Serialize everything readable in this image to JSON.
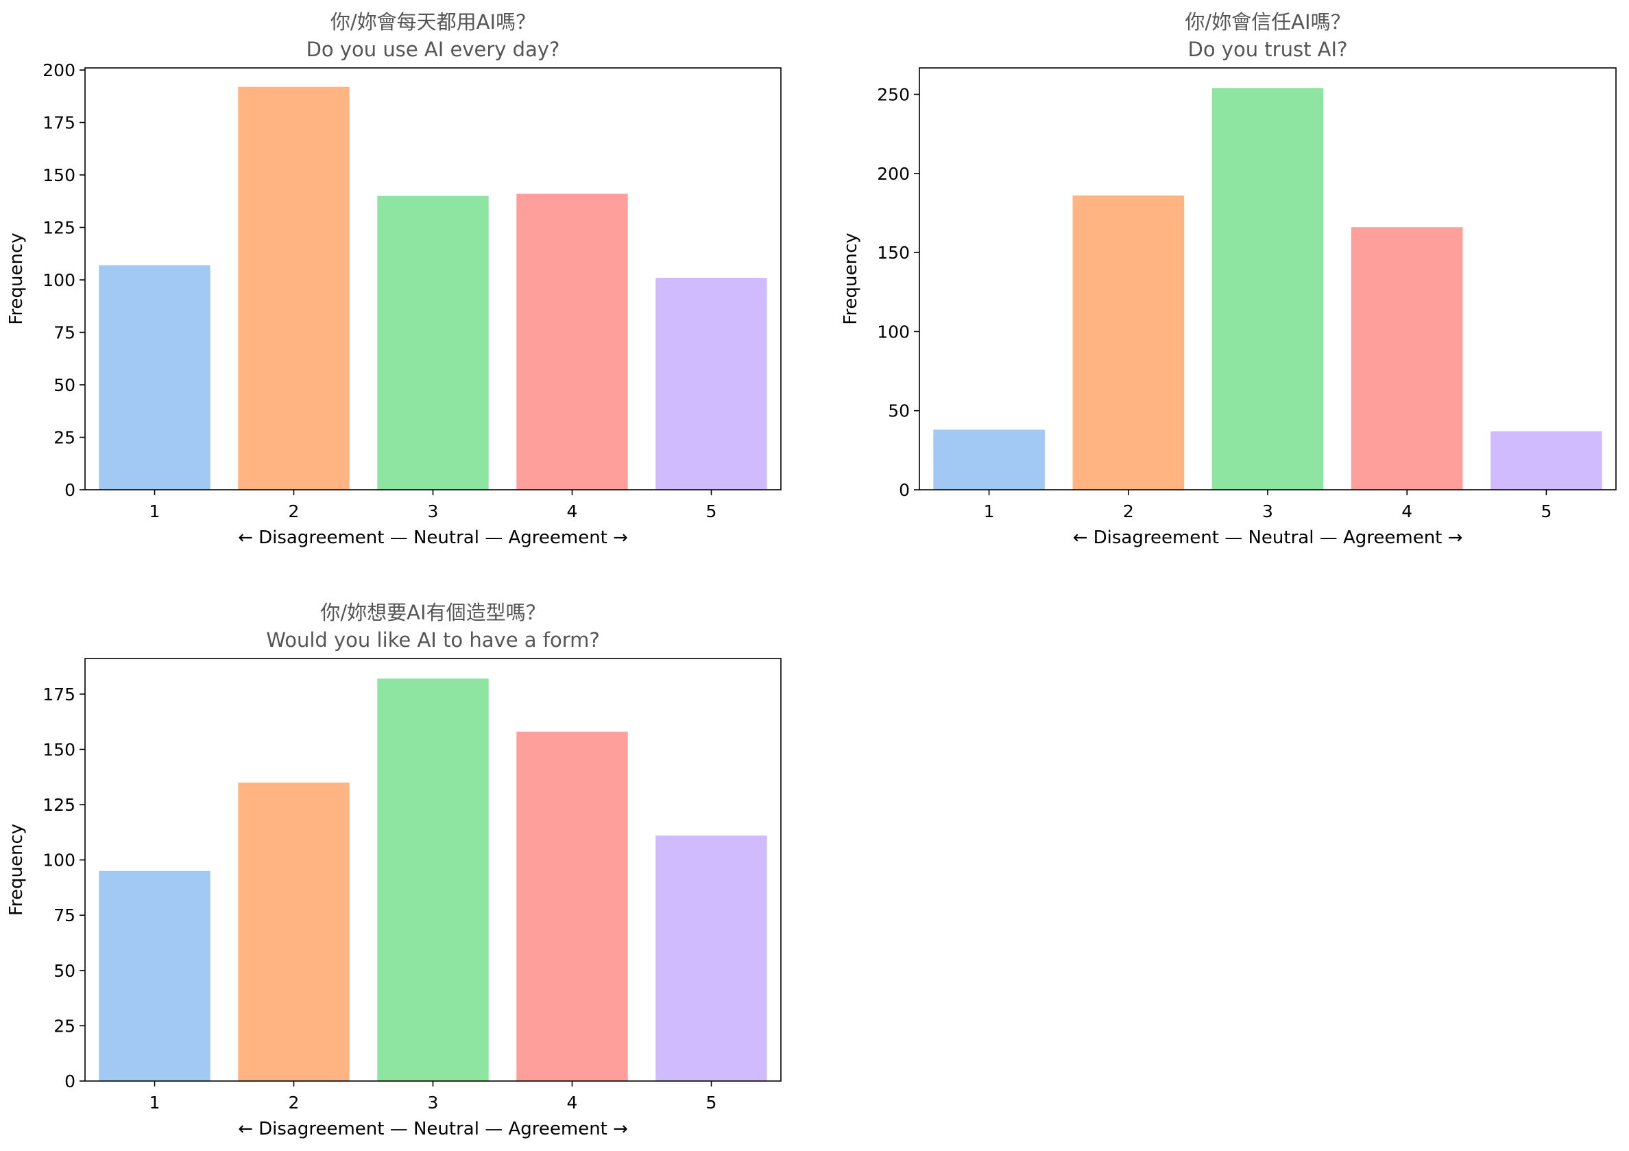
{
  "chart_data": [
    {
      "type": "bar",
      "title_lines": [
        "你/妳會每天都用AI嗎？",
        "Do you use AI every day?"
      ],
      "categories": [
        "1",
        "2",
        "3",
        "4",
        "5"
      ],
      "values": [
        107,
        192,
        140,
        141,
        101
      ],
      "colors": [
        "#a1c9f4",
        "#ffb482",
        "#8de5a1",
        "#ff9f9b",
        "#d0bbff"
      ],
      "xlabel": "← Disagreement — Neutral — Agreement →",
      "ylabel": "Frequency",
      "ylim": [
        0,
        201
      ],
      "yticks": [
        0,
        25,
        50,
        75,
        100,
        125,
        150,
        175,
        200
      ],
      "grid": false,
      "legend": "none"
    },
    {
      "type": "bar",
      "title_lines": [
        "你/妳會信任AI嗎？",
        "Do you trust AI?"
      ],
      "categories": [
        "1",
        "2",
        "3",
        "4",
        "5"
      ],
      "values": [
        38,
        186,
        254,
        166,
        37
      ],
      "colors": [
        "#a1c9f4",
        "#ffb482",
        "#8de5a1",
        "#ff9f9b",
        "#d0bbff"
      ],
      "xlabel": "← Disagreement — Neutral — Agreement →",
      "ylabel": "Frequency",
      "ylim": [
        0,
        266.7
      ],
      "yticks": [
        0,
        50,
        100,
        150,
        200,
        250
      ],
      "grid": false,
      "legend": "none"
    },
    {
      "type": "bar",
      "title_lines": [
        "你/妳想要AI有個造型嗎？",
        "Would you like AI to have a form?"
      ],
      "categories": [
        "1",
        "2",
        "3",
        "4",
        "5"
      ],
      "values": [
        95,
        135,
        182,
        158,
        111
      ],
      "colors": [
        "#a1c9f4",
        "#ffb482",
        "#8de5a1",
        "#ff9f9b",
        "#d0bbff"
      ],
      "xlabel": "← Disagreement — Neutral — Agreement →",
      "ylabel": "Frequency",
      "ylim": [
        0,
        191.1
      ],
      "yticks": [
        0,
        25,
        50,
        75,
        100,
        125,
        150,
        175
      ],
      "grid": false,
      "legend": "none"
    }
  ]
}
